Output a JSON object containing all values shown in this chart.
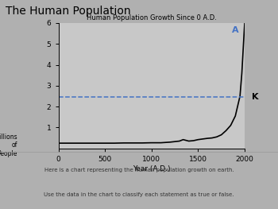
{
  "title_main": "The Human Population",
  "chart_title": "Human Population Growth Since 0 A.D.",
  "xlabel": "Year (A.D.)",
  "ylabel": "Billions\nof\nPeople",
  "xlim": [
    0,
    2000
  ],
  "ylim": [
    0,
    6
  ],
  "yticks": [
    1,
    2,
    3,
    4,
    5,
    6
  ],
  "xticks": [
    0,
    500,
    1000,
    1500,
    2000
  ],
  "population_years": [
    0,
    200,
    400,
    500,
    600,
    700,
    800,
    900,
    1000,
    1100,
    1200,
    1300,
    1340,
    1400,
    1450,
    1500,
    1600,
    1650,
    1700,
    1750,
    1800,
    1850,
    1900,
    1950,
    1970,
    1980,
    1990,
    1995,
    2000
  ],
  "population_values": [
    0.25,
    0.25,
    0.25,
    0.25,
    0.25,
    0.26,
    0.26,
    0.26,
    0.27,
    0.27,
    0.3,
    0.35,
    0.42,
    0.35,
    0.37,
    0.42,
    0.48,
    0.5,
    0.55,
    0.65,
    0.85,
    1.1,
    1.55,
    2.5,
    3.6,
    4.4,
    5.2,
    5.6,
    6.0
  ],
  "k_line_value": 2.45,
  "k_label": "K",
  "a_label": "A",
  "curve_color": "#000000",
  "dashed_color": "#4472c4",
  "chart_bg": "#c8c8c8",
  "outer_bg": "#b0b0b0",
  "bottom_bg": "#d8d8d8",
  "title_color": "#000000",
  "text1": "Here is a chart representing the human population growth on earth.",
  "text2": "Use the data in the chart to classify each statement as true or false."
}
